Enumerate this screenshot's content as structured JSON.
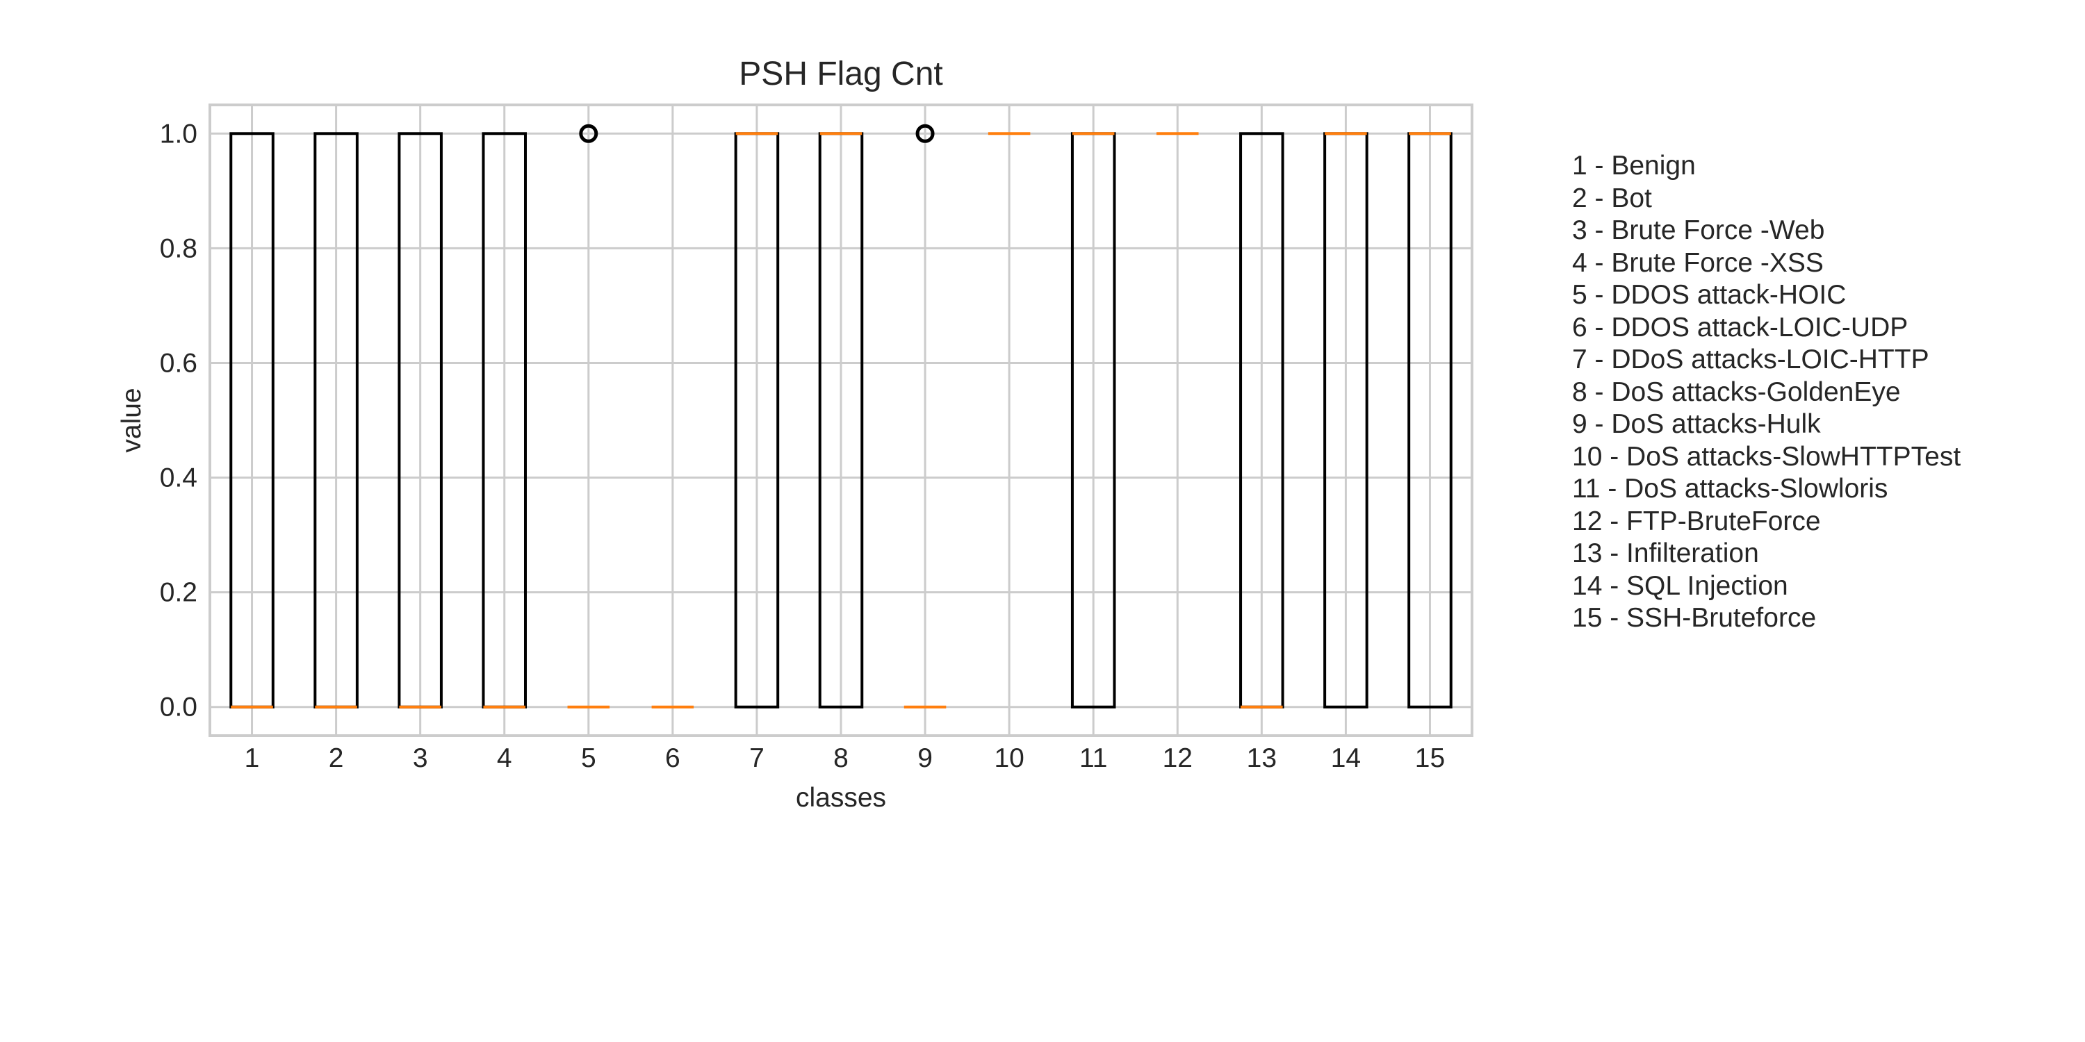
{
  "chart_data": {
    "type": "box",
    "title": "PSH Flag Cnt",
    "xlabel": "classes",
    "ylabel": "value",
    "ylim": [
      -0.05,
      1.05
    ],
    "yticks": [
      "0.0",
      "0.2",
      "0.4",
      "0.6",
      "0.8",
      "1.0"
    ],
    "categories": [
      "1",
      "2",
      "3",
      "4",
      "5",
      "6",
      "7",
      "8",
      "9",
      "10",
      "11",
      "12",
      "13",
      "14",
      "15"
    ],
    "grid": true,
    "boxes": [
      {
        "class": "1",
        "q1": 0,
        "median": 0,
        "q3": 1,
        "whisker_low": 0,
        "whisker_high": 1,
        "outliers": []
      },
      {
        "class": "2",
        "q1": 0,
        "median": 0,
        "q3": 1,
        "whisker_low": 0,
        "whisker_high": 1,
        "outliers": []
      },
      {
        "class": "3",
        "q1": 0,
        "median": 0,
        "q3": 1,
        "whisker_low": 0,
        "whisker_high": 1,
        "outliers": []
      },
      {
        "class": "4",
        "q1": 0,
        "median": 0,
        "q3": 1,
        "whisker_low": 0,
        "whisker_high": 1,
        "outliers": []
      },
      {
        "class": "5",
        "q1": 0,
        "median": 0,
        "q3": 0,
        "whisker_low": 0,
        "whisker_high": 0,
        "outliers": [
          1
        ]
      },
      {
        "class": "6",
        "q1": 0,
        "median": 0,
        "q3": 0,
        "whisker_low": 0,
        "whisker_high": 0,
        "outliers": []
      },
      {
        "class": "7",
        "q1": 0,
        "median": 1,
        "q3": 1,
        "whisker_low": 0,
        "whisker_high": 1,
        "outliers": []
      },
      {
        "class": "8",
        "q1": 0,
        "median": 1,
        "q3": 1,
        "whisker_low": 0,
        "whisker_high": 1,
        "outliers": []
      },
      {
        "class": "9",
        "q1": 0,
        "median": 0,
        "q3": 0,
        "whisker_low": 0,
        "whisker_high": 0,
        "outliers": [
          1
        ]
      },
      {
        "class": "10",
        "q1": 1,
        "median": 1,
        "q3": 1,
        "whisker_low": 1,
        "whisker_high": 1,
        "outliers": []
      },
      {
        "class": "11",
        "q1": 0,
        "median": 1,
        "q3": 1,
        "whisker_low": 0,
        "whisker_high": 1,
        "outliers": []
      },
      {
        "class": "12",
        "q1": 1,
        "median": 1,
        "q3": 1,
        "whisker_low": 1,
        "whisker_high": 1,
        "outliers": []
      },
      {
        "class": "13",
        "q1": 0,
        "median": 0,
        "q3": 1,
        "whisker_low": 0,
        "whisker_high": 1,
        "outliers": []
      },
      {
        "class": "14",
        "q1": 0,
        "median": 1,
        "q3": 1,
        "whisker_low": 0,
        "whisker_high": 1,
        "outliers": []
      },
      {
        "class": "15",
        "q1": 0,
        "median": 1,
        "q3": 1,
        "whisker_low": 0,
        "whisker_high": 1,
        "outliers": []
      }
    ],
    "legend_placement": "right",
    "legend": [
      "1 - Benign",
      "2 - Bot",
      "3 - Brute Force -Web",
      "4 - Brute Force -XSS",
      "5 - DDOS attack-HOIC",
      "6 - DDOS attack-LOIC-UDP",
      "7 - DDoS attacks-LOIC-HTTP",
      "8 - DoS attacks-GoldenEye",
      "9 - DoS attacks-Hulk",
      "10 - DoS attacks-SlowHTTPTest",
      "11 - DoS attacks-Slowloris",
      "12 - FTP-BruteForce",
      "13 - Infilteration",
      "14 - SQL Injection",
      "15 - SSH-Bruteforce"
    ],
    "colors": {
      "box": "#000000",
      "median": "#ff7f0e",
      "grid": "#cccccc",
      "frame": "#cccccc",
      "text": "#262626"
    }
  }
}
